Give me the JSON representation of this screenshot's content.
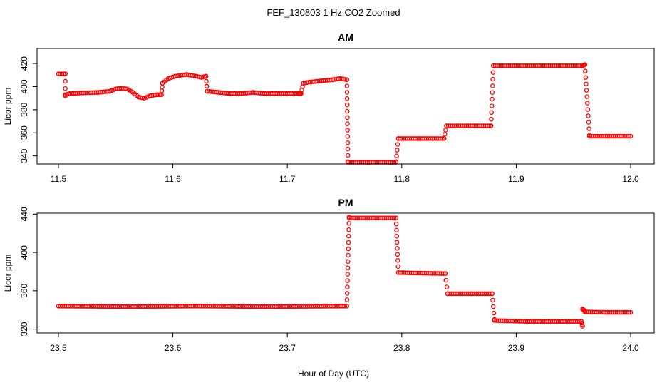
{
  "figure": {
    "title": "FEF_130803  1 Hz CO2 Zoomed",
    "xlabel": "Hour of Day (UTC)"
  },
  "colors": {
    "points": "#ff0000",
    "axis": "#000000"
  },
  "chart_data": [
    {
      "type": "scatter",
      "title": "AM",
      "ylabel": "Licor ppm",
      "xlim": [
        11.5,
        12.0
      ],
      "ylim": [
        333,
        433
      ],
      "xticks": [
        "11.5",
        "11.6",
        "11.7",
        "11.8",
        "11.9",
        "12.0"
      ],
      "yticks": [
        "340",
        "360",
        "380",
        "400",
        "420"
      ],
      "grid": false,
      "segments": [
        {
          "x": [
            11.5,
            11.506
          ],
          "y": [
            411,
            411
          ]
        },
        {
          "x": [
            11.506,
            11.506
          ],
          "y": [
            411,
            392
          ]
        },
        {
          "x": [
            11.506,
            11.51,
            11.52,
            11.535,
            11.545,
            11.55,
            11.555,
            11.56,
            11.565,
            11.57,
            11.575,
            11.58,
            11.586,
            11.59
          ],
          "y": [
            393,
            394,
            394.5,
            395,
            396,
            398,
            398.5,
            398,
            395,
            391,
            390,
            392,
            393,
            393
          ]
        },
        {
          "x": [
            11.59,
            11.591
          ],
          "y": [
            393,
            403
          ]
        },
        {
          "x": [
            11.591,
            11.596,
            11.602,
            11.612,
            11.62,
            11.625,
            11.629
          ],
          "y": [
            403,
            407,
            409,
            410.5,
            409,
            408,
            409
          ]
        },
        {
          "x": [
            11.629,
            11.63
          ],
          "y": [
            409,
            396
          ]
        },
        {
          "x": [
            11.63,
            11.64,
            11.65,
            11.66,
            11.67,
            11.68,
            11.69,
            11.7,
            11.71,
            11.712
          ],
          "y": [
            396,
            395,
            394,
            394,
            395,
            394,
            394,
            394,
            394,
            394
          ]
        },
        {
          "x": [
            11.712,
            11.714
          ],
          "y": [
            394,
            403
          ]
        },
        {
          "x": [
            11.714,
            11.72,
            11.73,
            11.74,
            11.746,
            11.752
          ],
          "y": [
            403,
            404,
            405,
            406,
            407,
            406
          ]
        },
        {
          "x": [
            11.752,
            11.753
          ],
          "y": [
            406,
            335
          ]
        },
        {
          "x": [
            11.753,
            11.77,
            11.79,
            11.795
          ],
          "y": [
            334.5,
            334.5,
            334.5,
            334.5
          ]
        },
        {
          "x": [
            11.795,
            11.797
          ],
          "y": [
            335,
            355
          ]
        },
        {
          "x": [
            11.797,
            11.815,
            11.837
          ],
          "y": [
            355,
            355,
            355
          ]
        },
        {
          "x": [
            11.837,
            11.839
          ],
          "y": [
            355,
            366
          ]
        },
        {
          "x": [
            11.839,
            11.86,
            11.878
          ],
          "y": [
            366,
            366,
            366
          ]
        },
        {
          "x": [
            11.878,
            11.88
          ],
          "y": [
            366,
            418
          ]
        },
        {
          "x": [
            11.88,
            11.9,
            11.92,
            11.94,
            11.958
          ],
          "y": [
            418,
            418,
            418,
            418,
            418
          ]
        },
        {
          "x": [
            11.958,
            11.96
          ],
          "y": [
            418,
            419
          ]
        },
        {
          "x": [
            11.96,
            11.964
          ],
          "y": [
            419,
            358
          ]
        },
        {
          "x": [
            11.964,
            11.98,
            12.0
          ],
          "y": [
            357,
            357,
            357
          ]
        }
      ]
    },
    {
      "type": "scatter",
      "title": "PM",
      "ylabel": "Licor ppm",
      "xlim": [
        23.5,
        24.0
      ],
      "ylim": [
        316,
        441
      ],
      "xticks": [
        "23.5",
        "23.6",
        "23.7",
        "23.8",
        "23.9",
        "24.0"
      ],
      "yticks": [
        "320",
        "360",
        "400",
        "440"
      ],
      "grid": false,
      "segments": [
        {
          "x": [
            23.5,
            23.56,
            23.62,
            23.68,
            23.752
          ],
          "y": [
            344,
            343.5,
            344,
            343.5,
            344
          ]
        },
        {
          "x": [
            23.752,
            23.754
          ],
          "y": [
            344,
            437
          ]
        },
        {
          "x": [
            23.754,
            23.775,
            23.795
          ],
          "y": [
            436,
            436,
            436
          ]
        },
        {
          "x": [
            23.795,
            23.797
          ],
          "y": [
            436,
            379
          ]
        },
        {
          "x": [
            23.797,
            23.815,
            23.838
          ],
          "y": [
            379,
            378.5,
            378
          ]
        },
        {
          "x": [
            23.838,
            23.84
          ],
          "y": [
            378,
            357
          ]
        },
        {
          "x": [
            23.84,
            23.86,
            23.879
          ],
          "y": [
            357,
            357,
            357
          ]
        },
        {
          "x": [
            23.879,
            23.881
          ],
          "y": [
            357,
            330
          ]
        },
        {
          "x": [
            23.881,
            23.91,
            23.94,
            23.957
          ],
          "y": [
            329,
            328,
            328,
            328
          ]
        },
        {
          "x": [
            23.957,
            23.958
          ],
          "y": [
            328,
            323
          ]
        },
        {
          "x": [
            23.958,
            23.96
          ],
          "y": [
            341,
            339
          ]
        },
        {
          "x": [
            23.96,
            23.98,
            24.0
          ],
          "y": [
            338,
            337.5,
            337.5
          ]
        }
      ]
    }
  ]
}
